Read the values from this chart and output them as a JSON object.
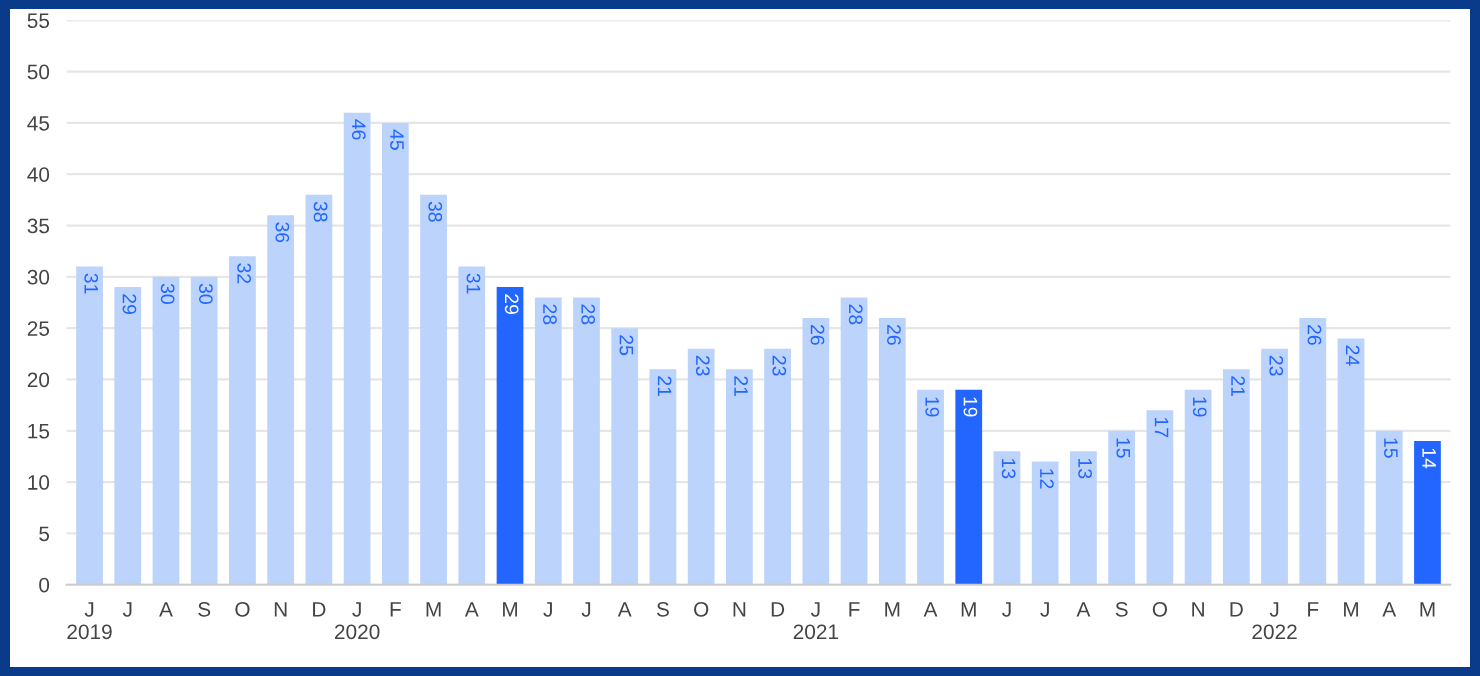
{
  "chart_data": {
    "type": "bar",
    "categories": [
      "J\n2019",
      "J",
      "A",
      "S",
      "O",
      "N",
      "D",
      "J\n2020",
      "F",
      "M",
      "A",
      "M",
      "J",
      "J",
      "A",
      "S",
      "O",
      "N",
      "D",
      "J\n2021",
      "F",
      "M",
      "A",
      "M",
      "J",
      "J",
      "A",
      "S",
      "O",
      "N",
      "D",
      "J\n2022",
      "F",
      "M",
      "A",
      "M"
    ],
    "values": [
      31,
      29,
      30,
      30,
      32,
      36,
      38,
      46,
      45,
      38,
      31,
      29,
      28,
      28,
      25,
      21,
      23,
      21,
      23,
      26,
      28,
      26,
      19,
      19,
      13,
      12,
      13,
      15,
      17,
      19,
      21,
      23,
      26,
      24,
      15,
      14
    ],
    "colors": [
      "#bcd3fc",
      "#bcd3fc",
      "#bcd3fc",
      "#bcd3fc",
      "#bcd3fc",
      "#bcd3fc",
      "#bcd3fc",
      "#bcd3fc",
      "#bcd3fc",
      "#bcd3fc",
      "#bcd3fc",
      "#2266ff",
      "#bcd3fc",
      "#bcd3fc",
      "#bcd3fc",
      "#bcd3fc",
      "#bcd3fc",
      "#bcd3fc",
      "#bcd3fc",
      "#bcd3fc",
      "#bcd3fc",
      "#bcd3fc",
      "#bcd3fc",
      "#2266ff",
      "#bcd3fc",
      "#bcd3fc",
      "#bcd3fc",
      "#bcd3fc",
      "#bcd3fc",
      "#bcd3fc",
      "#bcd3fc",
      "#bcd3fc",
      "#bcd3fc",
      "#bcd3fc",
      "#bcd3fc",
      "#2266ff"
    ],
    "ylim": [
      0,
      55
    ],
    "yticks": [
      0,
      5,
      10,
      15,
      20,
      25,
      30,
      35,
      40,
      45,
      50,
      55
    ],
    "grid": "y",
    "data_labels": true
  }
}
